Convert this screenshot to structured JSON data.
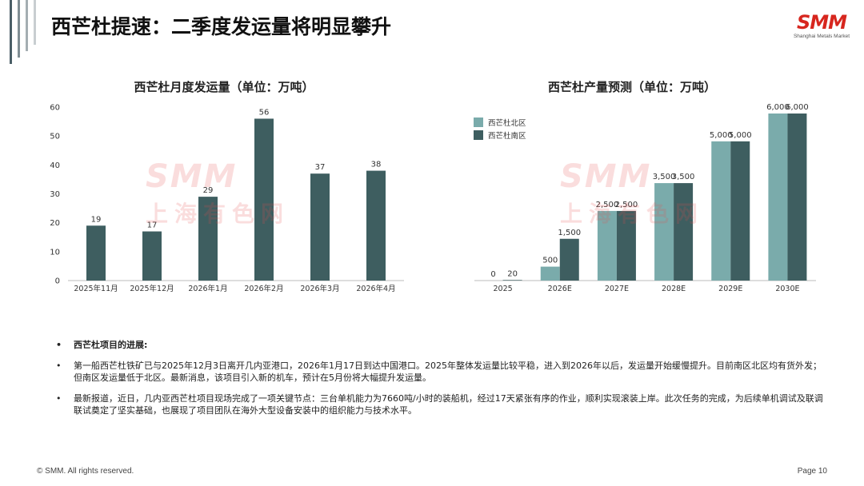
{
  "page": {
    "title": "西芒杜提速：二季度发运量将明显攀升",
    "logo": {
      "word": "SMM",
      "subtitle": "Shanghai Metals Market"
    },
    "watermark": {
      "en": "SMM",
      "cn": "上海有色网"
    },
    "footer": {
      "copyright": "© SMM. All rights reserved.",
      "page": "Page 10"
    },
    "colors": {
      "dark_bar": "#3e5e60",
      "light_bar": "#7aabab",
      "accent": "#d7261e"
    }
  },
  "chart_data": [
    {
      "type": "bar",
      "title": "西芒杜月度发运量（单位：万吨）",
      "categories": [
        "2025年11月",
        "2025年12月",
        "2026年1月",
        "2026年2月",
        "2026年3月",
        "2026年4月"
      ],
      "values": [
        19,
        17,
        29,
        56,
        37,
        38
      ],
      "data_labels": [
        "19",
        "17",
        "29",
        "56",
        "37",
        "38"
      ],
      "ylim": [
        0,
        60
      ],
      "yticks": [
        0,
        10,
        20,
        30,
        40,
        50,
        60
      ],
      "grid": false,
      "legend": "none"
    },
    {
      "type": "bar",
      "title": "西芒杜产量预测（单位：万吨）",
      "categories": [
        "2025",
        "2026E",
        "2027E",
        "2028E",
        "2029E",
        "2030E"
      ],
      "series": [
        {
          "name": "西芒杜北区",
          "color": "#7aabab",
          "values": [
            0,
            500,
            2500,
            3500,
            5000,
            6000
          ],
          "labels": [
            "0",
            "500",
            "2,500",
            "3,500",
            "5,000",
            "6,000"
          ]
        },
        {
          "name": "西芒杜南区",
          "color": "#3e5e60",
          "values": [
            20,
            1500,
            2500,
            3500,
            5000,
            6000
          ],
          "labels": [
            "20",
            "1,500",
            "2,500",
            "3,500",
            "5,000",
            "6,000"
          ]
        }
      ],
      "ylim": [
        0,
        6000
      ],
      "grid": false,
      "legend": "top-left"
    }
  ],
  "notes": {
    "heading": "西芒杜项目的进展:",
    "paragraphs": [
      "第一船西芒杜铁矿已与2025年12月3日离开几内亚港口，2026年1月17日到达中国港口。2025年整体发运量比较平稳，进入到2026年以后，发运量开始缓慢提升。目前南区北区均有货外发；但南区发运量低于北区。最新消息，该项目引入新的机车，预计在5月份将大幅提升发运量。",
      "最新报道，近日，几内亚西芒杜项目现场完成了一项关键节点：三台单机能力为7660吨/小时的装船机，经过17天紧张有序的作业，顺利实现滚装上岸。此次任务的完成，为后续单机调试及联调联试奠定了坚实基础，也展现了项目团队在海外大型设备安装中的组织能力与技术水平。"
    ]
  }
}
